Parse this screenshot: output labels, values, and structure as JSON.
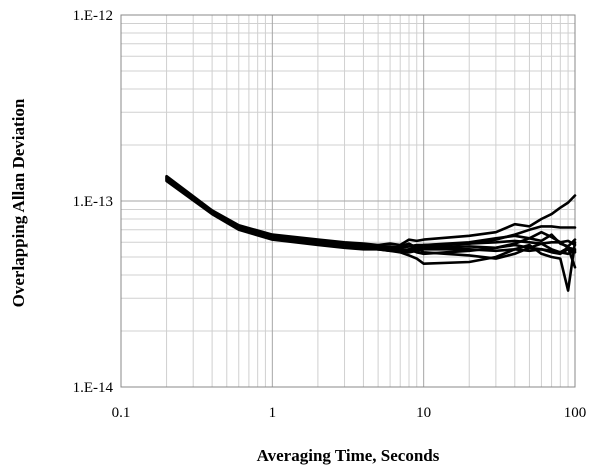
{
  "chart_data": {
    "type": "line",
    "title": "",
    "xlabel": "Averaging Time, Seconds",
    "ylabel": "Overlapping Allan Deviation",
    "x_scale": "log",
    "y_scale": "log",
    "xlim": [
      0.1,
      100
    ],
    "ylim": [
      1e-14,
      1e-12
    ],
    "grid": true,
    "legend": "none",
    "line_color": "#000000",
    "x_ticks": [
      {
        "value": 0.1,
        "label": "0.1"
      },
      {
        "value": 1,
        "label": "1"
      },
      {
        "value": 10,
        "label": "10"
      },
      {
        "value": 100,
        "label": "100"
      }
    ],
    "y_ticks": [
      {
        "value": 1e-14,
        "label": "1.E-14"
      },
      {
        "value": 1e-13,
        "label": "1.E-13"
      },
      {
        "value": 1e-12,
        "label": "1.E-12"
      }
    ],
    "x": [
      0.2,
      0.4,
      0.6,
      1,
      2,
      3,
      4,
      5,
      6,
      7,
      8,
      9,
      10,
      20,
      30,
      40,
      50,
      60,
      70,
      80,
      90,
      100
    ],
    "series": [
      {
        "values": [
          1.36e-13,
          8.9e-14,
          7.4e-14,
          6.6e-14,
          6.2e-14,
          6e-14,
          5.9e-14,
          5.8e-14,
          5.9e-14,
          5.8e-14,
          6.2e-14,
          6.1e-14,
          6.2e-14,
          6.5e-14,
          6.8e-14,
          7.5e-14,
          7.3e-14,
          8e-14,
          8.5e-14,
          9.2e-14,
          9.8e-14,
          1.07e-13
        ]
      },
      {
        "values": [
          1.34e-13,
          8.8e-14,
          7.3e-14,
          6.5e-14,
          6.1e-14,
          5.9e-14,
          5.8e-14,
          5.7e-14,
          5.6e-14,
          5.5e-14,
          5.4e-14,
          5.5e-14,
          5.7e-14,
          5.9e-14,
          6.2e-14,
          6.6e-14,
          7e-14,
          7.3e-14,
          7.3e-14,
          7.2e-14,
          7.2e-14,
          7.2e-14
        ]
      },
      {
        "values": [
          1.32e-13,
          8.7e-14,
          7.2e-14,
          6.4e-14,
          6e-14,
          5.8e-14,
          5.7e-14,
          5.6e-14,
          5.5e-14,
          5.3e-14,
          5.1e-14,
          4.9e-14,
          4.6e-14,
          4.7e-14,
          5e-14,
          5.5e-14,
          5.8e-14,
          5.2e-14,
          5e-14,
          4.9e-14,
          3.3e-14,
          6e-14
        ]
      },
      {
        "values": [
          1.3e-13,
          8.6e-14,
          7.1e-14,
          6.3e-14,
          5.9e-14,
          5.7e-14,
          5.6e-14,
          5.5e-14,
          5.4e-14,
          5.4e-14,
          5.5e-14,
          5.6e-14,
          5.8e-14,
          6e-14,
          6.3e-14,
          6.5e-14,
          6.3e-14,
          6.8e-14,
          6.4e-14,
          6e-14,
          5.6e-14,
          4.4e-14
        ]
      },
      {
        "values": [
          1.28e-13,
          8.5e-14,
          7e-14,
          6.2e-14,
          5.8e-14,
          5.6e-14,
          5.5e-14,
          5.5e-14,
          5.6e-14,
          5.7e-14,
          5.9e-14,
          5.6e-14,
          5.3e-14,
          5.1e-14,
          4.9e-14,
          5.2e-14,
          5.6e-14,
          5.9e-14,
          5.5e-14,
          5.3e-14,
          5.6e-14,
          5.5e-14
        ]
      },
      {
        "values": [
          1.31e-13,
          8.7e-14,
          7.2e-14,
          6.4e-14,
          6e-14,
          5.8e-14,
          5.6e-14,
          5.5e-14,
          5.4e-14,
          5.3e-14,
          5.5e-14,
          5.3e-14,
          5.2e-14,
          5.4e-14,
          5.6e-14,
          5.9e-14,
          6.3e-14,
          6.1e-14,
          6.6e-14,
          5.9e-14,
          5.7e-14,
          6.2e-14
        ]
      },
      {
        "values": [
          1.35e-13,
          8.8e-14,
          7.3e-14,
          6.5e-14,
          6.1e-14,
          5.9e-14,
          5.7e-14,
          5.7e-14,
          5.7e-14,
          5.6e-14,
          5.7e-14,
          5.7e-14,
          5.6e-14,
          5.7e-14,
          5.6e-14,
          5.8e-14,
          5.6e-14,
          5.5e-14,
          5.4e-14,
          5.3e-14,
          5.2e-14,
          5.4e-14
        ]
      },
      {
        "values": [
          1.29e-13,
          8.6e-14,
          7.1e-14,
          6.3e-14,
          5.9e-14,
          5.7e-14,
          5.6e-14,
          5.5e-14,
          5.5e-14,
          5.4e-14,
          5.3e-14,
          5.4e-14,
          5.5e-14,
          5.5e-14,
          5.4e-14,
          5.5e-14,
          5.4e-14,
          5.5e-14,
          5.3e-14,
          5.2e-14,
          5.5e-14,
          5.3e-14
        ]
      },
      {
        "values": [
          1.33e-13,
          8.7e-14,
          7.2e-14,
          6.4e-14,
          6e-14,
          5.9e-14,
          5.7e-14,
          5.6e-14,
          5.5e-14,
          5.6e-14,
          5.7e-14,
          5.8e-14,
          5.8e-14,
          5.9e-14,
          6e-14,
          6.1e-14,
          6e-14,
          5.9e-14,
          6e-14,
          6e-14,
          6.1e-14,
          5.8e-14
        ]
      }
    ]
  }
}
